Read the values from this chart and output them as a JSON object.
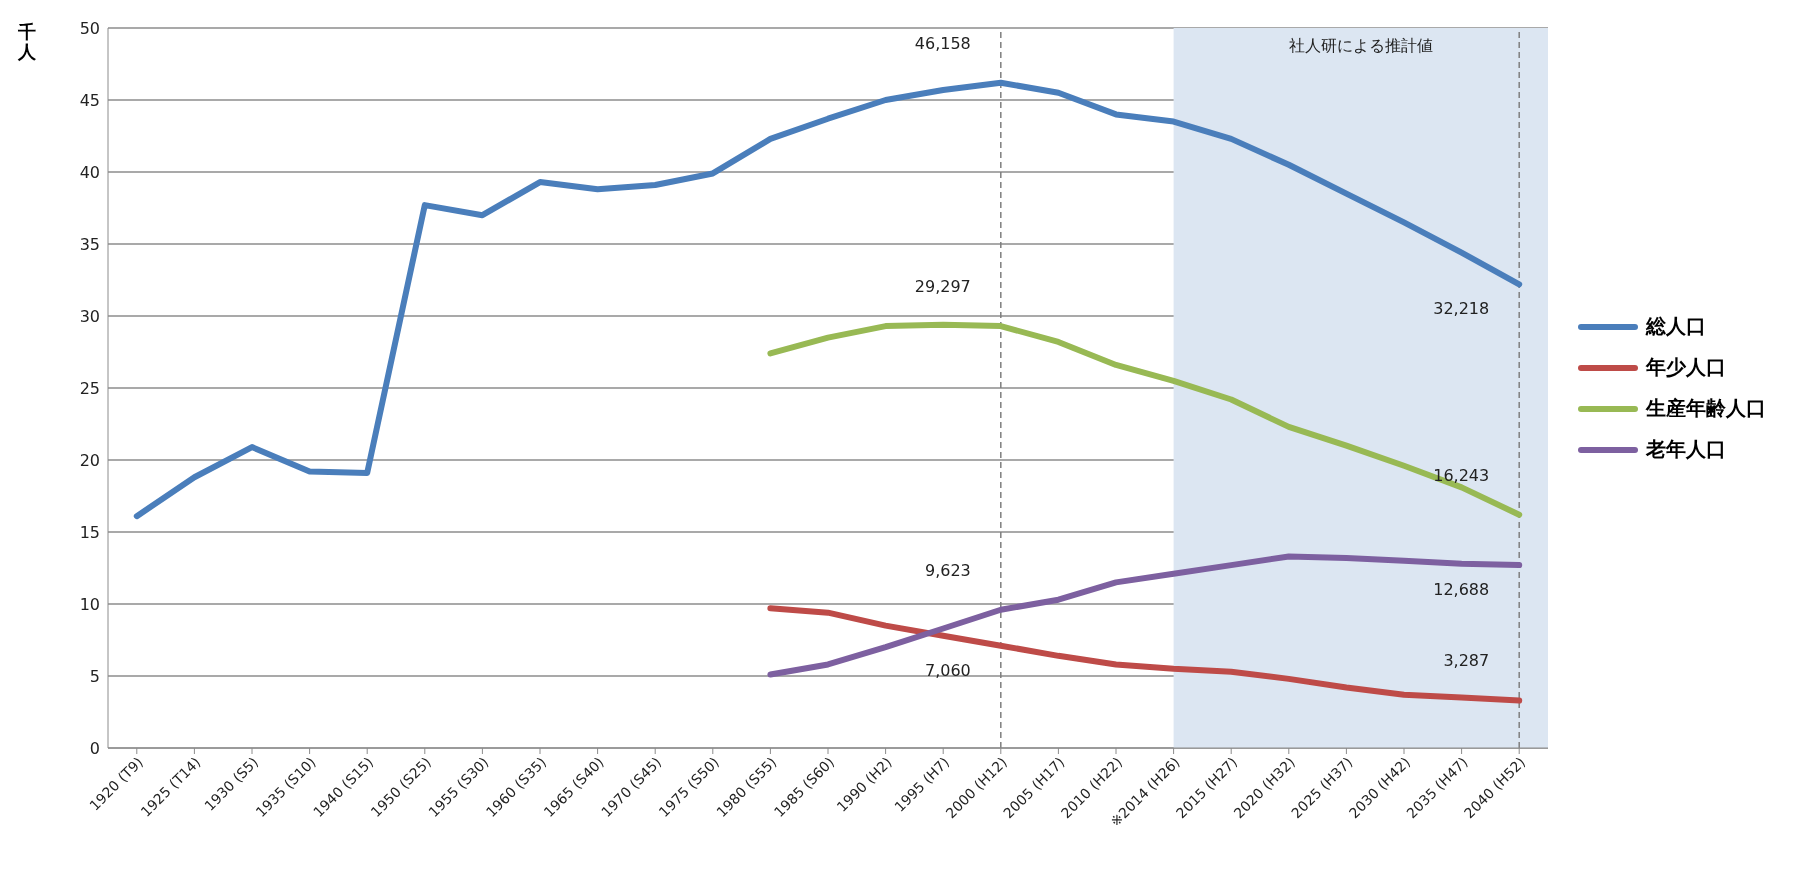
{
  "chart_data": {
    "type": "line",
    "ylabel": "千人",
    "categories": [
      "1920 (T9)",
      "1925 (T14)",
      "1930 (S5)",
      "1935 (S10)",
      "1940 (S15)",
      "1950 (S25)",
      "1955 (S30)",
      "1960 (S35)",
      "1965 (S40)",
      "1970 (S45)",
      "1975 (S50)",
      "1980 (S55)",
      "1985 (S60)",
      "1990 (H2)",
      "1995 (H7)",
      "2000 (H12)",
      "2005 (H17)",
      "2010 (H22)",
      "※2014 (H26)",
      "2015 (H27)",
      "2020 (H32)",
      "2025 (H37)",
      "2030 (H42)",
      "2035 (H47)",
      "2040 (H52)"
    ],
    "series": [
      {
        "name": "総人口",
        "color": "#4a7ebb",
        "values": [
          16.1,
          18.8,
          20.9,
          19.2,
          19.1,
          37.7,
          37.0,
          39.3,
          38.8,
          39.1,
          39.9,
          42.3,
          43.7,
          45.0,
          45.7,
          46.2,
          45.5,
          44.0,
          43.5,
          42.3,
          40.5,
          38.5,
          36.5,
          34.4,
          32.2
        ]
      },
      {
        "name": "年少人口",
        "color": "#be4b48",
        "values": [
          null,
          null,
          null,
          null,
          null,
          null,
          null,
          null,
          null,
          null,
          null,
          9.7,
          9.4,
          8.5,
          7.8,
          7.1,
          6.4,
          5.8,
          5.5,
          5.3,
          4.8,
          4.2,
          3.7,
          3.5,
          3.3
        ]
      },
      {
        "name": "生産年齢人口",
        "color": "#98b954",
        "values": [
          null,
          null,
          null,
          null,
          null,
          null,
          null,
          null,
          null,
          null,
          null,
          27.4,
          28.5,
          29.3,
          29.4,
          29.3,
          28.2,
          26.6,
          25.5,
          24.2,
          22.3,
          21.0,
          19.6,
          18.1,
          16.2
        ]
      },
      {
        "name": "老年人口",
        "color": "#7d60a0",
        "values": [
          null,
          null,
          null,
          null,
          null,
          null,
          null,
          null,
          null,
          null,
          null,
          5.1,
          5.8,
          7.0,
          8.3,
          9.6,
          10.3,
          11.5,
          12.1,
          12.7,
          13.3,
          13.2,
          13.0,
          12.8,
          12.7
        ]
      }
    ],
    "annotations": [
      {
        "text": "46,158",
        "x": "2000 (H12)",
        "y": 46.2
      },
      {
        "text": "32,218",
        "x": "2040 (H52)",
        "y": 32.2
      },
      {
        "text": "29,297",
        "x": "2000 (H12)",
        "y": 29.3
      },
      {
        "text": "16,243",
        "x": "2040 (H52)",
        "y": 16.2
      },
      {
        "text": "9,623",
        "x": "2000 (H12)",
        "y": 9.6
      },
      {
        "text": "12,688",
        "x": "2040 (H52)",
        "y": 12.7
      },
      {
        "text": "7,060",
        "x": "2000 (H12)",
        "y": 7.1
      },
      {
        "text": "3,287",
        "x": "2040 (H52)",
        "y": 3.3
      }
    ],
    "ylim": [
      0,
      50
    ],
    "yticks": [
      0,
      5,
      10,
      15,
      20,
      25,
      30,
      35,
      40,
      45,
      50
    ],
    "grid": "y",
    "legend": "right",
    "marker": "none",
    "line_style": "solid",
    "ref_lines": [
      {
        "axis": "x",
        "value": "2000 (H12)",
        "line_style": "dashed",
        "color": "#7f7f7f"
      },
      {
        "axis": "x",
        "value": "2040 (H52)",
        "line_style": "dashed",
        "color": "#7f7f7f"
      }
    ],
    "bands": [
      {
        "axis": "x",
        "from": "※2014 (H26)",
        "to": "2040 (H52)",
        "label": "社人研による推計値",
        "color": "#dce6f2"
      }
    ]
  }
}
